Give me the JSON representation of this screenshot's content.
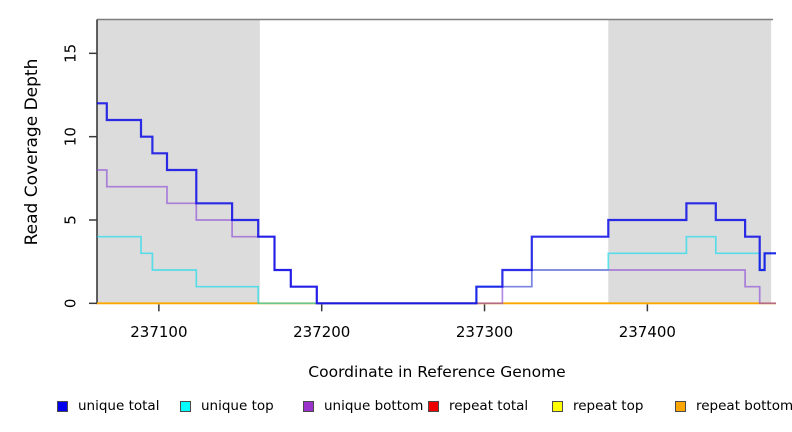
{
  "chart_data": {
    "type": "line",
    "subtype": "step-coverage",
    "title": "",
    "xlabel": "Coordinate in Reference Genome",
    "ylabel": "Read Coverage Depth",
    "xlim": [
      237062,
      237479
    ],
    "ylim": [
      0,
      17
    ],
    "x_ticks": [
      237100,
      237200,
      237300,
      237400
    ],
    "y_ticks": [
      0,
      5,
      10,
      15
    ],
    "grid": false,
    "legend_position": "bottom",
    "shaded_regions": [
      {
        "x_start": 237062,
        "x_end": 237162
      },
      {
        "x_start": 237376,
        "x_end": 237476
      }
    ],
    "shade_color": "#dcdcdc",
    "series": [
      {
        "name": "unique total",
        "color": "rgba(10,10,230,0.85)",
        "swatch": "#0000ee",
        "width": 2.2,
        "z": 6,
        "step_points": [
          [
            237062,
            12
          ],
          [
            237068,
            11
          ],
          [
            237089,
            10
          ],
          [
            237096,
            9
          ],
          [
            237105,
            8
          ],
          [
            237123,
            6
          ],
          [
            237145,
            5
          ],
          [
            237161,
            4
          ],
          [
            237171,
            2
          ],
          [
            237181,
            1
          ],
          [
            237197,
            0
          ],
          [
            237295,
            1
          ],
          [
            237311,
            2
          ],
          [
            237329,
            4
          ],
          [
            237376,
            5
          ],
          [
            237424,
            6
          ],
          [
            237442,
            5
          ],
          [
            237460,
            4
          ],
          [
            237469,
            2
          ],
          [
            237472,
            3
          ],
          [
            237479,
            3
          ]
        ]
      },
      {
        "name": "unique top",
        "color": "rgba(0,220,240,0.6)",
        "swatch": "#00ffff",
        "width": 1.7,
        "z": 4,
        "step_points": [
          [
            237062,
            4
          ],
          [
            237089,
            3
          ],
          [
            237096,
            2
          ],
          [
            237123,
            1
          ],
          [
            237161,
            0
          ],
          [
            237295,
            1
          ],
          [
            237329,
            2
          ],
          [
            237376,
            3
          ],
          [
            237424,
            4
          ],
          [
            237442,
            3
          ],
          [
            237469,
            2
          ],
          [
            237472,
            3
          ],
          [
            237479,
            3
          ]
        ]
      },
      {
        "name": "unique bottom",
        "color": "rgba(140,75,215,0.65)",
        "swatch": "#9933cc",
        "width": 1.7,
        "z": 5,
        "step_points": [
          [
            237062,
            8
          ],
          [
            237068,
            7
          ],
          [
            237105,
            6
          ],
          [
            237123,
            5
          ],
          [
            237145,
            4
          ],
          [
            237171,
            2
          ],
          [
            237181,
            1
          ],
          [
            237197,
            0
          ],
          [
            237311,
            1
          ],
          [
            237329,
            2
          ],
          [
            237460,
            1
          ],
          [
            237469,
            0
          ],
          [
            237479,
            0
          ]
        ]
      },
      {
        "name": "repeat total",
        "color": "rgba(238,0,0,1)",
        "swatch": "#ee0000",
        "width": 1.5,
        "z": 1,
        "step_points": [
          [
            237062,
            0
          ],
          [
            237479,
            0
          ]
        ]
      },
      {
        "name": "repeat top",
        "color": "rgba(255,255,0,1)",
        "swatch": "#ffff00",
        "width": 1.5,
        "z": 2,
        "step_points": [
          [
            237062,
            0
          ],
          [
            237479,
            0
          ]
        ]
      },
      {
        "name": "repeat bottom",
        "color": "rgba(255,165,0,1)",
        "swatch": "#ffa500",
        "width": 1.8,
        "z": 3,
        "step_points": [
          [
            237062,
            0
          ],
          [
            237479,
            0
          ]
        ]
      }
    ]
  },
  "axes": {
    "x_label": "Coordinate in Reference Genome",
    "y_label": "Read Coverage Depth",
    "axis_color": "#3a3a3a",
    "top_border_color": "#7f7f7f",
    "tick_label_color": "#000000"
  },
  "legend": {
    "items": [
      {
        "label": "unique total",
        "color": "#0000ee"
      },
      {
        "label": "unique top",
        "color": "#00ffff"
      },
      {
        "label": "unique bottom",
        "color": "#9933cc"
      },
      {
        "label": "repeat total",
        "color": "#ee0000"
      },
      {
        "label": "repeat top",
        "color": "#ffff00"
      },
      {
        "label": "repeat bottom",
        "color": "#ffa500"
      }
    ]
  }
}
